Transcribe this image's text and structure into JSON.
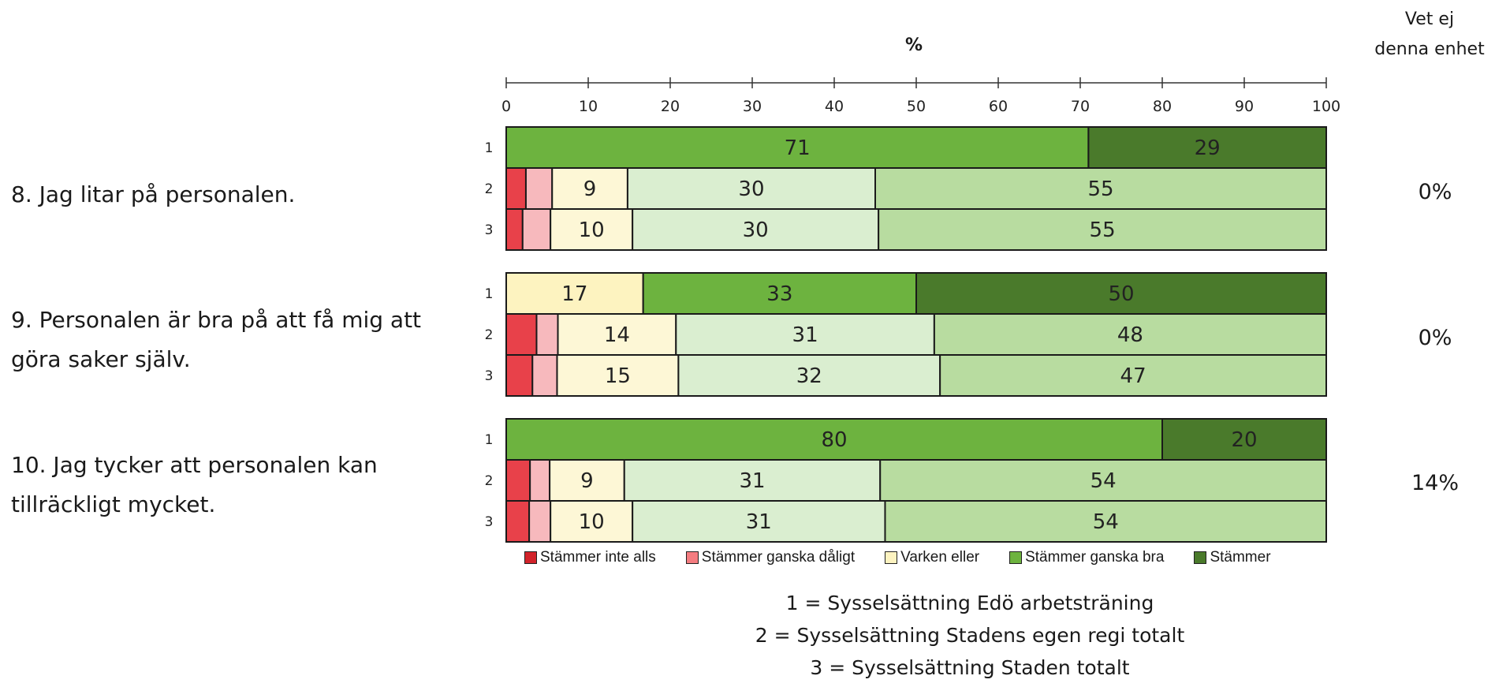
{
  "chart_data": {
    "type": "bar",
    "orientation": "horizontal-stacked",
    "axis_title": "%",
    "xlim": [
      0,
      100
    ],
    "ticks": [
      0,
      10,
      20,
      30,
      40,
      50,
      60,
      70,
      80,
      90,
      100
    ],
    "right_column_header": [
      "Vet ej",
      "denna enhet"
    ],
    "categories": [
      "Stämmer inte alls",
      "Stämmer ganska dåligt",
      "Varken eller",
      "Stämmer ganska bra",
      "Stämmer"
    ],
    "colors": [
      "#e8414a",
      "#f7b9bd",
      "#fdf7d6",
      "#daeed0",
      "#b8dca0"
    ],
    "row1_colors": [
      "#e8414a",
      "#f7b9bd",
      "#fdf3c0",
      "#6db33f",
      "#4a7a2b"
    ],
    "legend_colors": [
      "#d2232a",
      "#f47c80",
      "#fdf3c0",
      "#6db33f",
      "#4a7a2b"
    ],
    "questions": [
      {
        "label": "8. Jag litar på personalen.",
        "vet_ej": "0%",
        "rows": [
          {
            "id": "1",
            "values": [
              0,
              0,
              0,
              71,
              29
            ],
            "labels": [
              "",
              "",
              "",
              "71",
              "29"
            ]
          },
          {
            "id": "2",
            "values": [
              2.4,
              3.2,
              9.2,
              30.2,
              55
            ],
            "labels": [
              "",
              "",
              "9",
              "30",
              "55"
            ]
          },
          {
            "id": "3",
            "values": [
              2.0,
              3.4,
              10,
              30,
              54.6
            ],
            "labels": [
              "",
              "",
              "10",
              "30",
              "55"
            ]
          }
        ]
      },
      {
        "label": "9. Personalen är bra på att få mig att göra saker själv.",
        "vet_ej": "0%",
        "rows": [
          {
            "id": "1",
            "values": [
              0,
              0,
              16.7,
              33.3,
              50
            ],
            "labels": [
              "",
              "",
              "17",
              "33",
              "50"
            ]
          },
          {
            "id": "2",
            "values": [
              3.7,
              2.6,
              14.4,
              31.5,
              47.8
            ],
            "labels": [
              "",
              "",
              "14",
              "31",
              "48"
            ]
          },
          {
            "id": "3",
            "values": [
              3.2,
              3.0,
              14.8,
              31.9,
              47.1
            ],
            "labels": [
              "",
              "",
              "15",
              "32",
              "47"
            ]
          }
        ]
      },
      {
        "label": "10. Jag tycker att personalen kan tillräckligt mycket.",
        "vet_ej": "14%",
        "rows": [
          {
            "id": "1",
            "values": [
              0,
              0,
              0,
              80,
              20
            ],
            "labels": [
              "",
              "",
              "",
              "80",
              "20"
            ]
          },
          {
            "id": "2",
            "values": [
              2.9,
              2.4,
              9.1,
              31.2,
              54.4
            ],
            "labels": [
              "",
              "",
              "9",
              "31",
              "54"
            ]
          },
          {
            "id": "3",
            "values": [
              2.8,
              2.6,
              10,
              30.8,
              53.8
            ],
            "labels": [
              "",
              "",
              "10",
              "31",
              "54"
            ]
          }
        ]
      }
    ],
    "footer": [
      "1 = Sysselsättning Edö arbetsträning",
      "2 = Sysselsättning Stadens egen regi totalt",
      "3 = Sysselsättning Staden totalt"
    ]
  }
}
